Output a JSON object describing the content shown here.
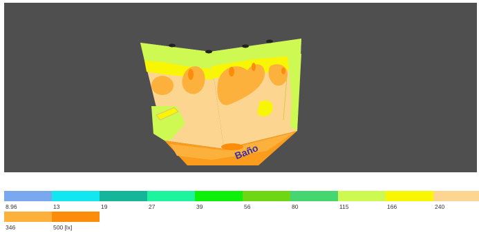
{
  "viewport": {
    "background": "#4f4f4f",
    "room_label": "Baño"
  },
  "legend": {
    "row1": [
      {
        "value": "8.96",
        "color": "#79a8ef"
      },
      {
        "value": "13",
        "color": "#12e6ee"
      },
      {
        "value": "19",
        "color": "#14b59b"
      },
      {
        "value": "27",
        "color": "#1ef49e"
      },
      {
        "value": "39",
        "color": "#0cf00a"
      },
      {
        "value": "56",
        "color": "#6ed612"
      },
      {
        "value": "80",
        "color": "#45d672"
      },
      {
        "value": "115",
        "color": "#cef953"
      },
      {
        "value": "166",
        "color": "#f8f603"
      },
      {
        "value": "240",
        "color": "#fcd691"
      }
    ],
    "row2": [
      {
        "value": "346",
        "color": "#fbb13c"
      },
      {
        "value": "500 [lx]",
        "color": "#fb8d0b"
      }
    ]
  }
}
